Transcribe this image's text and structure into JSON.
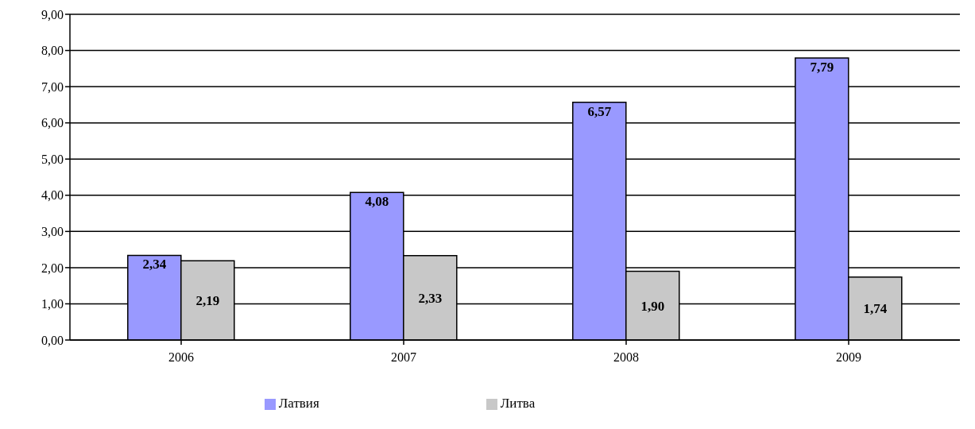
{
  "chart_data": {
    "type": "bar",
    "categories": [
      "2006",
      "2007",
      "2008",
      "2009"
    ],
    "series": [
      {
        "name": "Латвия",
        "color": "#9999ff",
        "values": [
          2.34,
          4.08,
          6.57,
          7.79
        ],
        "value_labels": [
          "2,34",
          "4,08",
          "6,57",
          "7,79"
        ]
      },
      {
        "name": "Литва",
        "color": "#c8c8c8",
        "values": [
          2.19,
          2.33,
          1.9,
          1.74
        ],
        "value_labels": [
          "2,19",
          "2,33",
          "1,90",
          "1,74"
        ]
      }
    ],
    "ylim": [
      0,
      9
    ],
    "yticks": [
      {
        "value": 0,
        "label": "0,00"
      },
      {
        "value": 1,
        "label": "1,00"
      },
      {
        "value": 2,
        "label": "2,00"
      },
      {
        "value": 3,
        "label": "3,00"
      },
      {
        "value": 4,
        "label": "4,00"
      },
      {
        "value": 5,
        "label": "5,00"
      },
      {
        "value": 6,
        "label": "6,00"
      },
      {
        "value": 7,
        "label": "7,00"
      },
      {
        "value": 8,
        "label": "8,00"
      },
      {
        "value": 9,
        "label": "9,00"
      }
    ],
    "grid": "y",
    "legend": "bottom"
  }
}
